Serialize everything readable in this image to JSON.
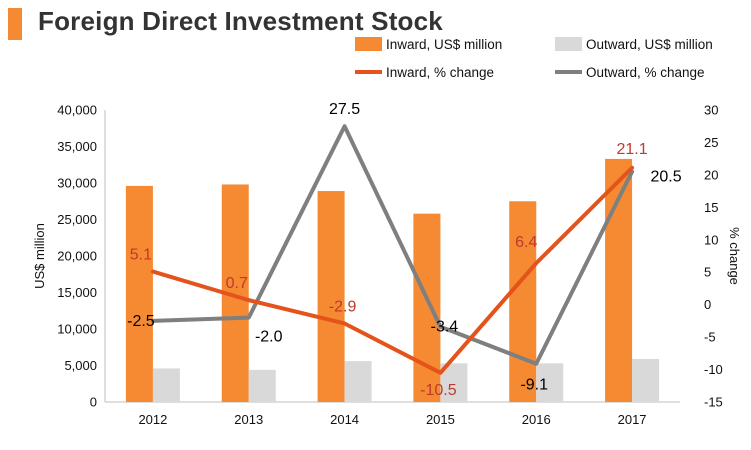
{
  "title": "Foreign Direct Investment Stock",
  "colors": {
    "accent": "#f68a33",
    "inward_bar": "#f68a33",
    "outward_bar": "#d9d9d9",
    "inward_line": "#e3531b",
    "outward_line": "#7f7f7f",
    "inward_label": "#c0392b",
    "outward_label": "#000000"
  },
  "chart_data": {
    "type": "bar",
    "title": "Foreign Direct Investment Stock",
    "categories": [
      "2012",
      "2013",
      "2014",
      "2015",
      "2016",
      "2017"
    ],
    "series": [
      {
        "name": "Inward, US$ million",
        "kind": "bar",
        "axis": "left",
        "values": [
          29600,
          29800,
          28900,
          25800,
          27500,
          33300
        ]
      },
      {
        "name": "Outward, US$ million",
        "kind": "bar",
        "axis": "left",
        "values": [
          4600,
          4400,
          5600,
          5300,
          5300,
          5900
        ]
      },
      {
        "name": "Inward, % change",
        "kind": "line",
        "axis": "right",
        "values": [
          5.1,
          0.7,
          -2.9,
          -10.5,
          6.4,
          21.1
        ],
        "labels": [
          "5.1",
          "0.7",
          "-2.9",
          "-10.5",
          "6.4",
          "21.1"
        ]
      },
      {
        "name": "Outward, % change",
        "kind": "line",
        "axis": "right",
        "values": [
          -2.5,
          -2.0,
          27.5,
          -3.4,
          -9.1,
          20.5
        ],
        "labels": [
          "-2.5",
          "-2.0",
          "27.5",
          "-3.4",
          "-9.1",
          "20.5"
        ]
      }
    ],
    "ylabel": "US$ million",
    "y2label": "% change",
    "ylim": [
      0,
      40000
    ],
    "y2lim": [
      -15,
      30
    ],
    "yticks": [
      "40,000",
      "35,000",
      "30,000",
      "25,000",
      "20,000",
      "15,000",
      "10,000",
      "5,000",
      "0"
    ],
    "y2ticks": [
      "30",
      "25",
      "20",
      "15",
      "10",
      "5",
      "0",
      "-5",
      "-10",
      "-15"
    ],
    "legend_position": "top-right"
  }
}
